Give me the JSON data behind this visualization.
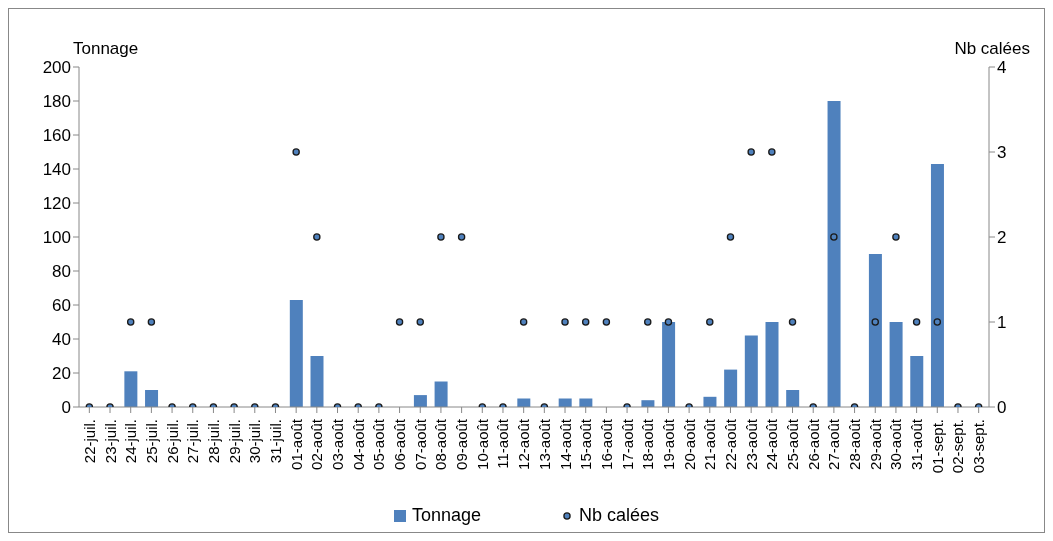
{
  "chart_data": {
    "type": "bar",
    "ylabel": "Tonnage",
    "y2label": "Nb calées",
    "categories": [
      "22-juil.",
      "23-juil.",
      "24-juil.",
      "25-juil.",
      "26-juil.",
      "27-juil.",
      "28-juil.",
      "29-juil.",
      "30-juil.",
      "31-juil.",
      "01-août",
      "02-août",
      "03-août",
      "04-août",
      "05-août",
      "06-août",
      "07-août",
      "08-août",
      "09-août",
      "10-août",
      "11-août",
      "12-août",
      "13-août",
      "14-août",
      "15-août",
      "16-août",
      "17-août",
      "18-août",
      "19-août",
      "20-août",
      "21-août",
      "22-août",
      "23-août",
      "24-août",
      "25-août",
      "26-août",
      "27-août",
      "28-août",
      "29-août",
      "30-août",
      "31-août",
      "01-sept.",
      "02-sept.",
      "03-sept."
    ],
    "series": [
      {
        "name": "Tonnage",
        "color": "#4f81bd",
        "values": [
          0,
          0,
          21,
          10,
          0,
          0,
          0,
          0,
          0,
          0,
          63,
          30,
          0,
          0,
          0,
          0,
          7,
          15,
          0,
          0,
          0,
          5,
          0,
          5,
          5,
          0,
          0,
          4,
          50,
          0,
          6,
          22,
          42,
          50,
          10,
          0,
          180,
          0,
          90,
          50,
          30,
          143,
          0,
          0
        ]
      },
      {
        "name": "Nb calées",
        "type": "scatter",
        "axis": "y2",
        "color": "#4f81bd",
        "values": [
          0,
          0,
          1,
          1,
          0,
          0,
          0,
          0,
          0,
          0,
          3,
          2,
          0,
          0,
          0,
          1,
          1,
          2,
          2,
          0,
          0,
          1,
          0,
          1,
          1,
          1,
          0,
          1,
          1,
          0,
          1,
          2,
          3,
          3,
          1,
          0,
          2,
          0,
          1,
          2,
          1,
          1,
          0,
          0
        ]
      }
    ],
    "ylim": [
      0,
      200
    ],
    "yticks": [
      0,
      20,
      40,
      60,
      80,
      100,
      120,
      140,
      160,
      180,
      200
    ],
    "y2lim": [
      0,
      4
    ],
    "y2ticks": [
      0,
      1,
      2,
      3,
      4
    ],
    "grid": false,
    "legend": "bottom",
    "marker": "circle"
  }
}
